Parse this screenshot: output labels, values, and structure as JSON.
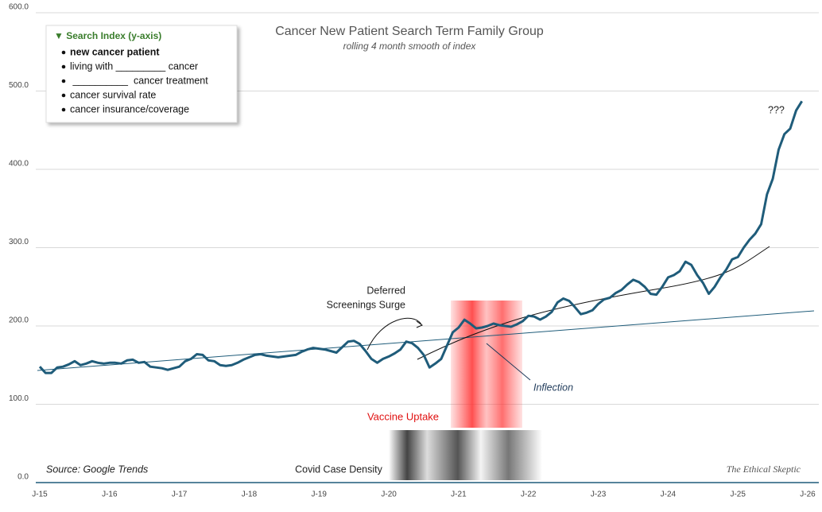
{
  "chart_data": {
    "type": "line",
    "title": "Cancer New Patient Search Term Family Group",
    "subtitle": "rolling 4 month smooth of index",
    "legend_box": {
      "title": "▼ Search Index (y-axis)",
      "items": [
        "new cancer patient",
        "living with _________ cancer",
        " __________  cancer treatment",
        "cancer survival rate",
        "cancer insurance/coverage"
      ]
    },
    "annotations": {
      "deferred": [
        "Deferred",
        "Screenings Surge"
      ],
      "inflection": "Inflection",
      "question": "???",
      "vaccine": "Vaccine Uptake",
      "covid": "Covid Case Density",
      "source": "Source: Google Trends",
      "brand": "The Ethical Skeptic"
    },
    "categories": [
      "J-15",
      null,
      null,
      null,
      null,
      null,
      null,
      null,
      null,
      null,
      null,
      null,
      "J-16",
      null,
      null,
      null,
      null,
      null,
      null,
      null,
      null,
      null,
      null,
      null,
      "J-17",
      null,
      null,
      null,
      null,
      null,
      null,
      null,
      null,
      null,
      null,
      null,
      "J-18",
      null,
      null,
      null,
      null,
      null,
      null,
      null,
      null,
      null,
      null,
      null,
      "J-19",
      null,
      null,
      null,
      null,
      null,
      null,
      null,
      null,
      null,
      null,
      null,
      "J-20",
      null,
      null,
      null,
      null,
      null,
      null,
      null,
      null,
      null,
      null,
      null,
      "J-21",
      null,
      null,
      null,
      null,
      null,
      null,
      null,
      null,
      null,
      null,
      null,
      "J-22",
      null,
      null,
      null,
      null,
      null,
      null,
      null,
      null,
      null,
      null,
      null,
      "J-23",
      null,
      null,
      null,
      null,
      null,
      null,
      null,
      null,
      null,
      null,
      null,
      "J-24",
      null,
      null,
      null,
      null,
      null,
      null,
      null,
      null,
      null,
      null,
      null,
      "J-25",
      null,
      null,
      null,
      null,
      null,
      null,
      null,
      null,
      null,
      null,
      null,
      "J-26"
    ],
    "series": [
      {
        "name": "Search Index",
        "color": "#1f5c7a",
        "values": [
          148,
          140,
          140,
          147,
          148,
          151,
          155,
          150,
          152,
          155,
          153,
          152,
          153,
          153,
          152,
          156,
          157,
          153,
          154,
          148,
          147,
          146,
          144,
          146,
          148,
          155,
          158,
          164,
          163,
          156,
          155,
          150,
          149,
          150,
          153,
          157,
          160,
          163,
          164,
          162,
          161,
          160,
          161,
          162,
          163,
          167,
          170,
          172,
          171,
          170,
          168,
          166,
          173,
          180,
          181,
          177,
          168,
          158,
          153,
          158,
          161,
          165,
          170,
          180,
          178,
          172,
          163,
          147,
          152,
          158,
          175,
          192,
          198,
          208,
          203,
          197,
          198,
          200,
          203,
          201,
          200,
          199,
          202,
          206,
          213,
          212,
          208,
          212,
          218,
          230,
          235,
          232,
          224,
          215,
          217,
          220,
          228,
          234,
          236,
          242,
          246,
          253,
          259,
          256,
          250,
          241,
          240,
          250,
          262,
          265,
          270,
          282,
          278,
          265,
          255,
          241,
          250,
          262,
          272,
          285,
          288,
          300,
          310,
          318,
          330,
          368,
          388,
          425,
          445,
          452,
          475,
          487,
          null
        ]
      }
    ],
    "ylim": [
      0,
      600
    ],
    "yticks": [
      {
        "value": 0,
        "label": "0.0"
      },
      {
        "value": 100,
        "label": "100.0"
      },
      {
        "value": 200,
        "label": "200.0"
      },
      {
        "value": 300,
        "label": "300.0"
      },
      {
        "value": 400,
        "label": "400.0"
      },
      {
        "value": 500,
        "label": "500.0"
      },
      {
        "value": 600,
        "label": "600.0"
      }
    ],
    "grid": true
  }
}
